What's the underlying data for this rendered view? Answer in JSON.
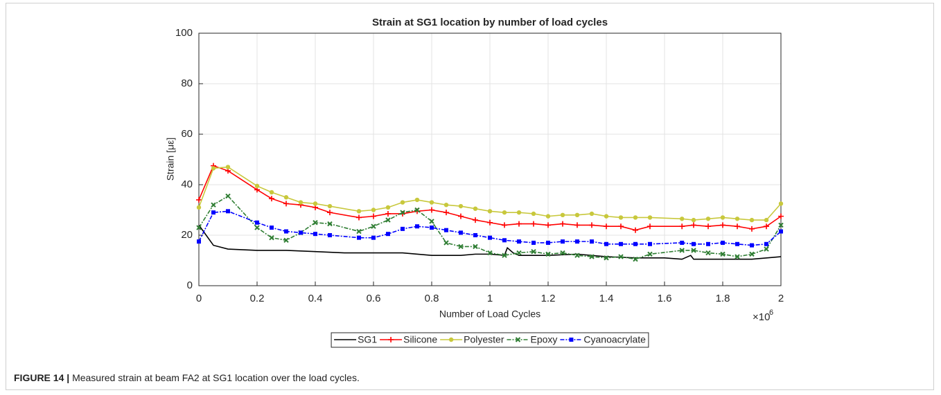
{
  "chart_data": {
    "type": "line",
    "title": "Strain at SG1 location by number of load cycles",
    "x_label": "Number of Load Cycles",
    "x_multiplier": "×10",
    "x_multiplier_exp": "6",
    "y_label": "Strain [με]",
    "xlim": [
      0,
      2
    ],
    "xticks": [
      0,
      0.2,
      0.4,
      0.6,
      0.8,
      1,
      1.2,
      1.4,
      1.6,
      1.8,
      2
    ],
    "ylim": [
      0,
      100
    ],
    "yticks": [
      0,
      20,
      40,
      60,
      80,
      100
    ],
    "grid": true,
    "legend": "bottom",
    "series": [
      {
        "name": "SG1",
        "color": "#000000",
        "marker": "none",
        "dash": "solid",
        "x": [
          0,
          0.05,
          0.1,
          0.2,
          0.3,
          0.4,
          0.5,
          0.6,
          0.7,
          0.8,
          0.9,
          0.95,
          1.0,
          1.05,
          1.06,
          1.08,
          1.1,
          1.2,
          1.3,
          1.4,
          1.5,
          1.6,
          1.66,
          1.69,
          1.7,
          1.8,
          1.9,
          2.0
        ],
        "values": [
          24,
          16,
          14.5,
          14,
          14,
          13.5,
          13,
          13,
          13,
          12,
          12,
          12.5,
          12.5,
          12,
          15,
          13,
          12,
          12,
          12.5,
          11.5,
          11,
          11,
          10.5,
          12,
          10.5,
          10.5,
          10.5,
          11.5
        ]
      },
      {
        "name": "Silicone",
        "color": "#ff0000",
        "marker": "plus",
        "dash": "solid",
        "x": [
          0,
          0.05,
          0.1,
          0.2,
          0.25,
          0.3,
          0.35,
          0.4,
          0.45,
          0.55,
          0.6,
          0.65,
          0.7,
          0.75,
          0.8,
          0.85,
          0.9,
          0.95,
          1.0,
          1.05,
          1.1,
          1.15,
          1.2,
          1.25,
          1.3,
          1.35,
          1.4,
          1.45,
          1.5,
          1.55,
          1.66,
          1.7,
          1.75,
          1.8,
          1.85,
          1.9,
          1.95,
          2.0
        ],
        "values": [
          34,
          47.5,
          45.5,
          38,
          34.5,
          32.5,
          32,
          31,
          29,
          27,
          27.5,
          28.5,
          28.5,
          29.5,
          30,
          29,
          27.5,
          26,
          25,
          24,
          24.5,
          24.5,
          24,
          24.5,
          24,
          24,
          23.5,
          23.5,
          22,
          23.5,
          23.5,
          24,
          23.5,
          24,
          23.5,
          22.5,
          23.5,
          27.5
        ]
      },
      {
        "name": "Polyester",
        "color": "#c8c83c",
        "marker": "circle",
        "dash": "solid",
        "x": [
          0,
          0.05,
          0.1,
          0.2,
          0.25,
          0.3,
          0.35,
          0.4,
          0.45,
          0.55,
          0.6,
          0.65,
          0.7,
          0.75,
          0.8,
          0.85,
          0.9,
          0.95,
          1.0,
          1.05,
          1.1,
          1.15,
          1.2,
          1.25,
          1.3,
          1.35,
          1.4,
          1.45,
          1.5,
          1.55,
          1.66,
          1.7,
          1.75,
          1.8,
          1.85,
          1.9,
          1.95,
          2.0
        ],
        "values": [
          31,
          46.5,
          47,
          39.5,
          37,
          35,
          33,
          32.5,
          31.5,
          29.5,
          30,
          31,
          33,
          34,
          33,
          32,
          31.5,
          30.5,
          29.5,
          29,
          29,
          28.5,
          27.5,
          28,
          28,
          28.5,
          27.5,
          27,
          27,
          27,
          26.5,
          26,
          26.5,
          27,
          26.5,
          26,
          26,
          32.5
        ]
      },
      {
        "name": "Epoxy",
        "color": "#2e7d32",
        "marker": "cross",
        "dash": "dashdot",
        "x": [
          0,
          0.05,
          0.1,
          0.2,
          0.25,
          0.3,
          0.35,
          0.4,
          0.45,
          0.55,
          0.6,
          0.65,
          0.7,
          0.75,
          0.8,
          0.85,
          0.9,
          0.95,
          1.0,
          1.05,
          1.1,
          1.15,
          1.2,
          1.25,
          1.3,
          1.35,
          1.4,
          1.45,
          1.5,
          1.55,
          1.66,
          1.7,
          1.75,
          1.8,
          1.85,
          1.9,
          1.95,
          2.0
        ],
        "values": [
          23,
          32,
          35.5,
          23,
          19,
          18,
          21,
          25,
          24.5,
          21.5,
          23.5,
          26,
          29,
          30,
          25.5,
          17,
          15.5,
          15.5,
          13,
          12,
          13,
          13.5,
          12.5,
          13,
          12,
          11.5,
          11,
          11.5,
          10.5,
          12.5,
          14,
          14,
          13,
          12.5,
          11.5,
          12.5,
          14.5,
          24
        ]
      },
      {
        "name": "Cyanoacrylate",
        "color": "#0000ff",
        "marker": "square",
        "dash": "dashdot",
        "x": [
          0,
          0.05,
          0.1,
          0.2,
          0.25,
          0.3,
          0.35,
          0.4,
          0.45,
          0.55,
          0.6,
          0.65,
          0.7,
          0.75,
          0.8,
          0.85,
          0.9,
          0.95,
          1.0,
          1.05,
          1.1,
          1.15,
          1.2,
          1.25,
          1.3,
          1.35,
          1.4,
          1.45,
          1.5,
          1.55,
          1.66,
          1.7,
          1.75,
          1.8,
          1.85,
          1.9,
          1.95,
          2.0
        ],
        "values": [
          17.5,
          29,
          29.5,
          25,
          23,
          21.5,
          21,
          20.5,
          20,
          19,
          19,
          20.5,
          22.5,
          23.5,
          23,
          22,
          21,
          20,
          19,
          18,
          17.5,
          17,
          17,
          17.5,
          17.5,
          17.5,
          16.5,
          16.5,
          16.5,
          16.5,
          17,
          16.5,
          16.5,
          17,
          16.5,
          16,
          16.5,
          21.5
        ]
      }
    ]
  },
  "caption": {
    "label": "FIGURE 14 |",
    "text": "Measured strain at beam FA2 at SG1 location over the load cycles."
  }
}
